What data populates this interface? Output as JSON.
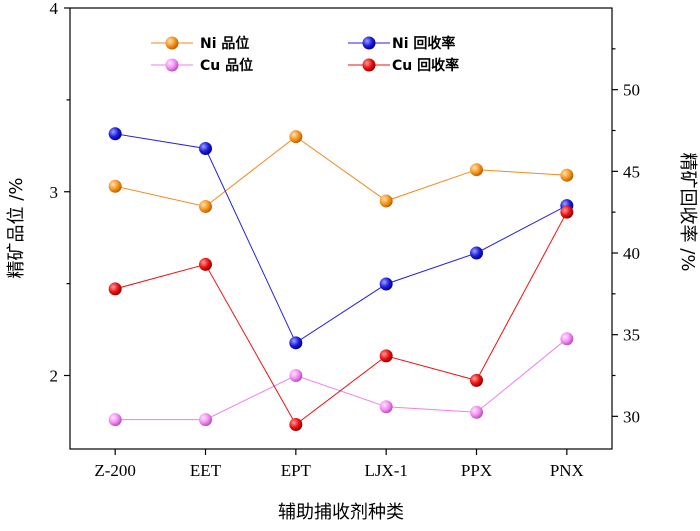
{
  "chart_data": {
    "type": "line",
    "categories": [
      "Z-200",
      "EET",
      "EPT",
      "LJX-1",
      "PPX",
      "PNX"
    ],
    "xlabel": "辅助捕收剂种类",
    "ylabel_left": "精矿品位 /%",
    "ylabel_right": "精矿回收率 /%",
    "ylim_left": [
      1.6,
      4.0
    ],
    "ylim_right": [
      28,
      55
    ],
    "yticks_left": [
      "2",
      "3",
      "4"
    ],
    "yticks_right": [
      "30",
      "35",
      "40",
      "45",
      "50"
    ],
    "series": [
      {
        "name": "Ni 品位",
        "axis": "left",
        "color": "#f28a1e",
        "values": [
          3.03,
          2.92,
          3.3,
          2.95,
          3.12,
          3.09
        ]
      },
      {
        "name": "Cu 品位",
        "axis": "left",
        "color": "#f07ef0",
        "values": [
          1.76,
          1.76,
          2.0,
          1.83,
          1.8,
          2.2
        ]
      },
      {
        "name": "Ni 回收率",
        "axis": "right",
        "color": "#2222dd",
        "values": [
          47.3,
          46.4,
          34.5,
          38.1,
          40.0,
          42.9
        ]
      },
      {
        "name": "Cu 回收率",
        "axis": "right",
        "color": "#ee1111",
        "values": [
          37.8,
          39.3,
          29.5,
          33.7,
          32.2,
          42.5
        ]
      }
    ]
  }
}
